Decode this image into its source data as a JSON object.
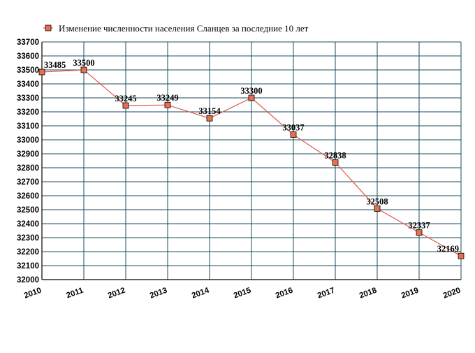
{
  "chart_data": {
    "type": "line",
    "title": "",
    "xlabel": "",
    "ylabel": "",
    "x": [
      "2010",
      "2011",
      "2012",
      "2013",
      "2014",
      "2015",
      "2016",
      "2017",
      "2018",
      "2019",
      "2020"
    ],
    "series": [
      {
        "name": "Изменение численности населения Сланцев за последние 10 лет",
        "values": [
          33485,
          33500,
          33245,
          33249,
          33154,
          33300,
          33037,
          32838,
          32508,
          32337,
          32169
        ],
        "labels": [
          "33485",
          "33500",
          "33245",
          "33249",
          "33154",
          "33300",
          "33037",
          "32838",
          "32508",
          "32337",
          "32169"
        ],
        "line_color": "#e05a4a",
        "marker_color": "#e8704f",
        "marker_edge_color": "#000000"
      }
    ],
    "ylim": [
      32000,
      33700
    ],
    "yticks": [
      "32000",
      "32100",
      "32200",
      "32300",
      "32400",
      "32500",
      "32600",
      "32700",
      "32800",
      "32900",
      "33000",
      "33100",
      "33200",
      "33300",
      "33400",
      "33500",
      "33600",
      "33700"
    ],
    "grid": true,
    "grid_color": "#1b4b5e",
    "legend_position": "top-left",
    "background": "#ffffff"
  }
}
